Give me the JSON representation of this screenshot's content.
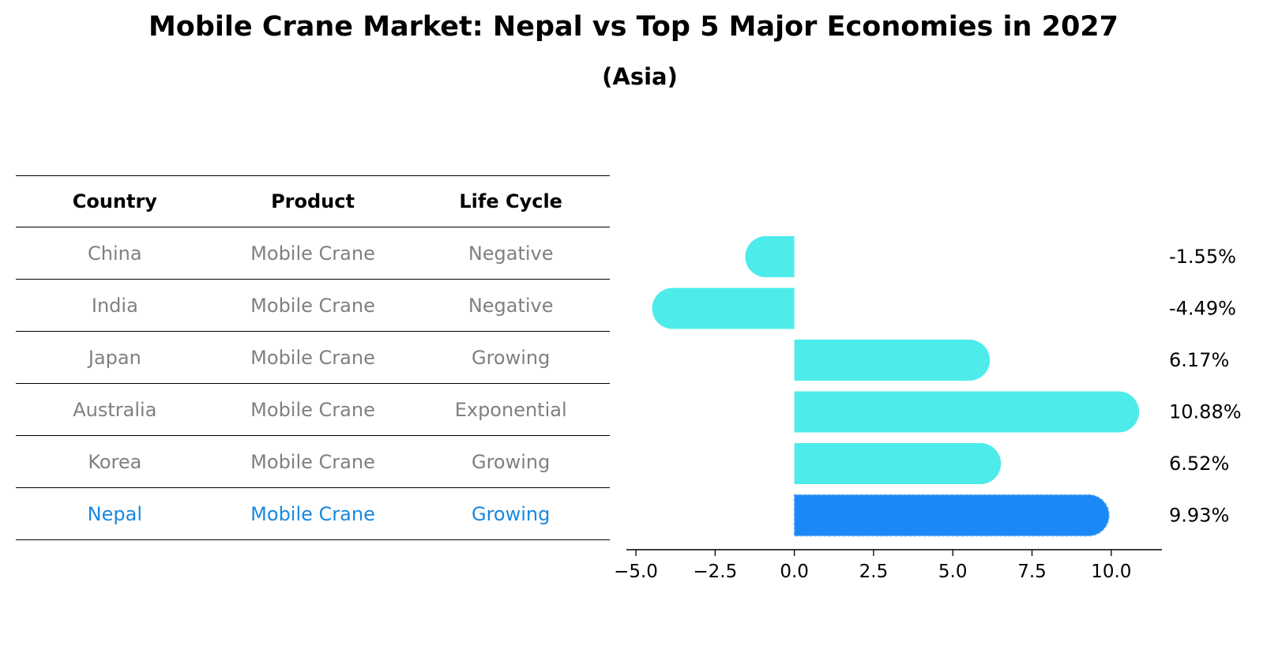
{
  "title": "Mobile Crane Market: Nepal vs Top 5 Major Economies in 2027",
  "subtitle": "(Asia)",
  "table": {
    "headers": [
      "Country",
      "Product",
      "Life Cycle"
    ],
    "rows": [
      {
        "country": "China",
        "product": "Mobile Crane",
        "life_cycle": "Negative"
      },
      {
        "country": "India",
        "product": "Mobile Crane",
        "life_cycle": "Negative"
      },
      {
        "country": "Japan",
        "product": "Mobile Crane",
        "life_cycle": "Growing"
      },
      {
        "country": "Australia",
        "product": "Mobile Crane",
        "life_cycle": "Exponential"
      },
      {
        "country": "Korea",
        "product": "Mobile Crane",
        "life_cycle": "Growing"
      },
      {
        "country": "Nepal",
        "product": "Mobile Crane",
        "life_cycle": "Growing"
      }
    ],
    "highlight_color": "#1a88dd",
    "text_color": "#808080"
  },
  "chart_data": {
    "type": "bar",
    "orientation": "horizontal",
    "categories": [
      "China",
      "India",
      "Japan",
      "Australia",
      "Korea",
      "Nepal"
    ],
    "values": [
      -1.55,
      -4.49,
      6.17,
      10.88,
      6.52,
      9.93
    ],
    "value_labels": [
      "-1.55%",
      "-4.49%",
      "6.17%",
      "10.88%",
      "6.52%",
      "9.93%"
    ],
    "xlim": [
      -5.3,
      11.6
    ],
    "xticks": [
      -5.0,
      -2.5,
      0.0,
      2.5,
      5.0,
      7.5,
      10.0
    ],
    "xtick_labels": [
      "−5.0",
      "−2.5",
      "0.0",
      "2.5",
      "5.0",
      "7.5",
      "10.0"
    ],
    "highlight_category": "Nepal",
    "colors": {
      "default": "#4deceb",
      "highlight": "#1a88f7"
    },
    "grid": false
  }
}
